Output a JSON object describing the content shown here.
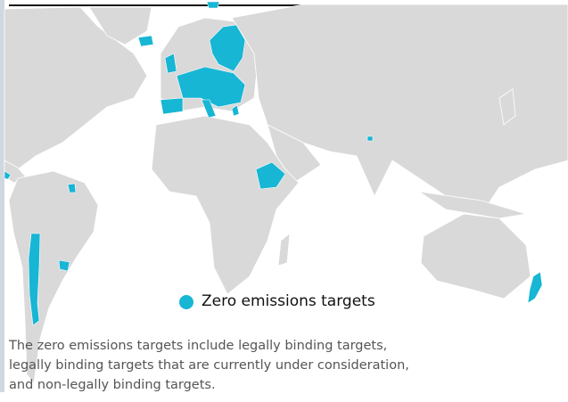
{
  "legend": {
    "label": "Zero emissions targets"
  },
  "caption": [
    "The zero emissions targets include legally binding targets,",
    "legally binding targets that are currently under consideration,",
    "and non-legally binding targets."
  ]
}
